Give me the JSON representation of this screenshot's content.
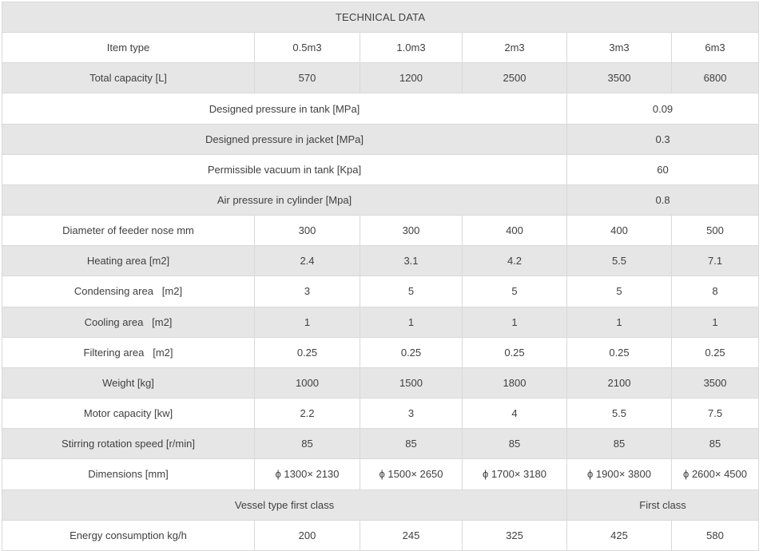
{
  "table": {
    "title": "TECHNICAL DATA",
    "colors": {
      "shaded_row_bg": "#e6e6e6",
      "row_bg": "#ffffff",
      "border": "#d9d9d9",
      "text": "#404040"
    },
    "rows": [
      {
        "label": "Item type",
        "values": [
          "0.5m3",
          "1.0m3",
          "2m3",
          "3m3",
          "6m3"
        ],
        "merged": false,
        "shaded": false
      },
      {
        "label": "Total capacity [L]",
        "values": [
          "570",
          "1200",
          "2500",
          "3500",
          "6800"
        ],
        "merged": false,
        "shaded": true
      },
      {
        "label": "Designed pressure in tank [MPa]",
        "values": [
          "0.09"
        ],
        "merged": true,
        "shaded": false
      },
      {
        "label": "Designed pressure in jacket [MPa]",
        "values": [
          "0.3"
        ],
        "merged": true,
        "shaded": true
      },
      {
        "label": "Permissible vacuum in tank [Kpa]",
        "values": [
          "60"
        ],
        "merged": true,
        "shaded": false
      },
      {
        "label": "Air pressure in cylinder [Mpa]",
        "values": [
          "0.8"
        ],
        "merged": true,
        "shaded": true
      },
      {
        "label": "Diameter of feeder nose mm",
        "values": [
          "300",
          "300",
          "400",
          "400",
          "500"
        ],
        "merged": false,
        "shaded": false
      },
      {
        "label": "Heating area [m2]",
        "values": [
          "2.4",
          "3.1",
          "4.2",
          "5.5",
          "7.1"
        ],
        "merged": false,
        "shaded": true
      },
      {
        "label": "Condensing area   [m2]",
        "values": [
          "3",
          "5",
          "5",
          "5",
          "8"
        ],
        "merged": false,
        "shaded": false
      },
      {
        "label": "Cooling area   [m2]",
        "values": [
          "1",
          "1",
          "1",
          "1",
          "1"
        ],
        "merged": false,
        "shaded": true
      },
      {
        "label": "Filtering area   [m2]",
        "values": [
          "0.25",
          "0.25",
          "0.25",
          "0.25",
          "0.25"
        ],
        "merged": false,
        "shaded": false
      },
      {
        "label": "Weight [kg]",
        "values": [
          "1000",
          "1500",
          "1800",
          "2100",
          "3500"
        ],
        "merged": false,
        "shaded": true
      },
      {
        "label": "Motor capacity [kw]",
        "values": [
          "2.2",
          "3",
          "4",
          "5.5",
          "7.5"
        ],
        "merged": false,
        "shaded": false
      },
      {
        "label": "Stirring rotation speed [r/min]",
        "values": [
          "85",
          "85",
          "85",
          "85",
          "85"
        ],
        "merged": false,
        "shaded": true
      },
      {
        "label": "Dimensions [mm]",
        "values": [
          "ϕ 1300× 2130",
          "ϕ 1500× 2650",
          "ϕ 1700× 3180",
          "ϕ 1900× 3800",
          "ϕ 2600× 4500"
        ],
        "merged": false,
        "shaded": false
      },
      {
        "label": "Vessel type first class",
        "values": [
          "First class"
        ],
        "merged": true,
        "shaded": true
      },
      {
        "label": "Energy consumption kg/h",
        "values": [
          "200",
          "245",
          "325",
          "425",
          "580"
        ],
        "merged": false,
        "shaded": false
      }
    ]
  }
}
